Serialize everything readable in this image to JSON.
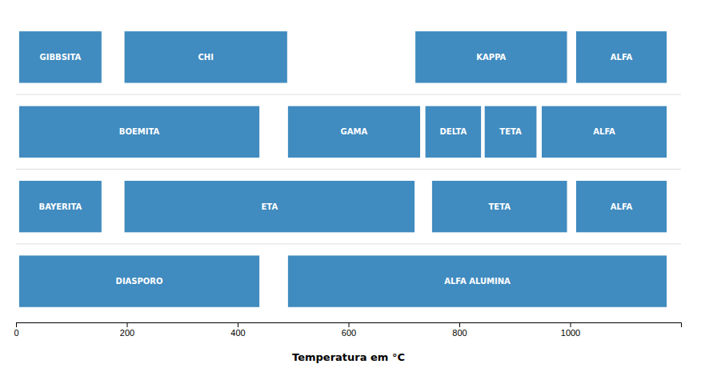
{
  "chart_data": {
    "type": "range_bar",
    "orientation": "horizontal",
    "x_label": "Temperatura em °C",
    "categories": [
      null,
      null,
      null,
      null
    ],
    "rows": [
      {
        "boxes": [
          {
            "label": "GIBBSITA",
            "start": 5,
            "end": 155
          },
          {
            "label": "CHI",
            "start": 195,
            "end": 490
          },
          {
            "label": "KAPPA",
            "start": 720,
            "end": 995
          },
          {
            "label": "ALFA",
            "start": 1010,
            "end": 1175
          }
        ]
      },
      {
        "boxes": [
          {
            "label": "BOEMITA",
            "start": 5,
            "end": 440
          },
          {
            "label": "GAMA",
            "start": 490,
            "end": 730
          },
          {
            "label": "DELTA",
            "start": 738,
            "end": 840
          },
          {
            "label": "TETA",
            "start": 845,
            "end": 940
          },
          {
            "label": "ALFA",
            "start": 948,
            "end": 1175
          }
        ]
      },
      {
        "boxes": [
          {
            "label": "BAYERITA",
            "start": 5,
            "end": 155
          },
          {
            "label": "ETA",
            "start": 195,
            "end": 720
          },
          {
            "label": "TETA",
            "start": 750,
            "end": 995
          },
          {
            "label": "ALFA",
            "start": 1010,
            "end": 1175
          }
        ]
      },
      {
        "boxes": [
          {
            "label": "DIASPORO",
            "start": 5,
            "end": 440
          },
          {
            "label": "ALFA ALUMINA",
            "start": 490,
            "end": 1175
          }
        ]
      }
    ],
    "xlim": [
      0,
      1200
    ],
    "xticks": [
      0,
      200,
      400,
      600,
      800,
      1000
    ],
    "grid": false,
    "data_labels": true,
    "tick_labels": "x"
  }
}
